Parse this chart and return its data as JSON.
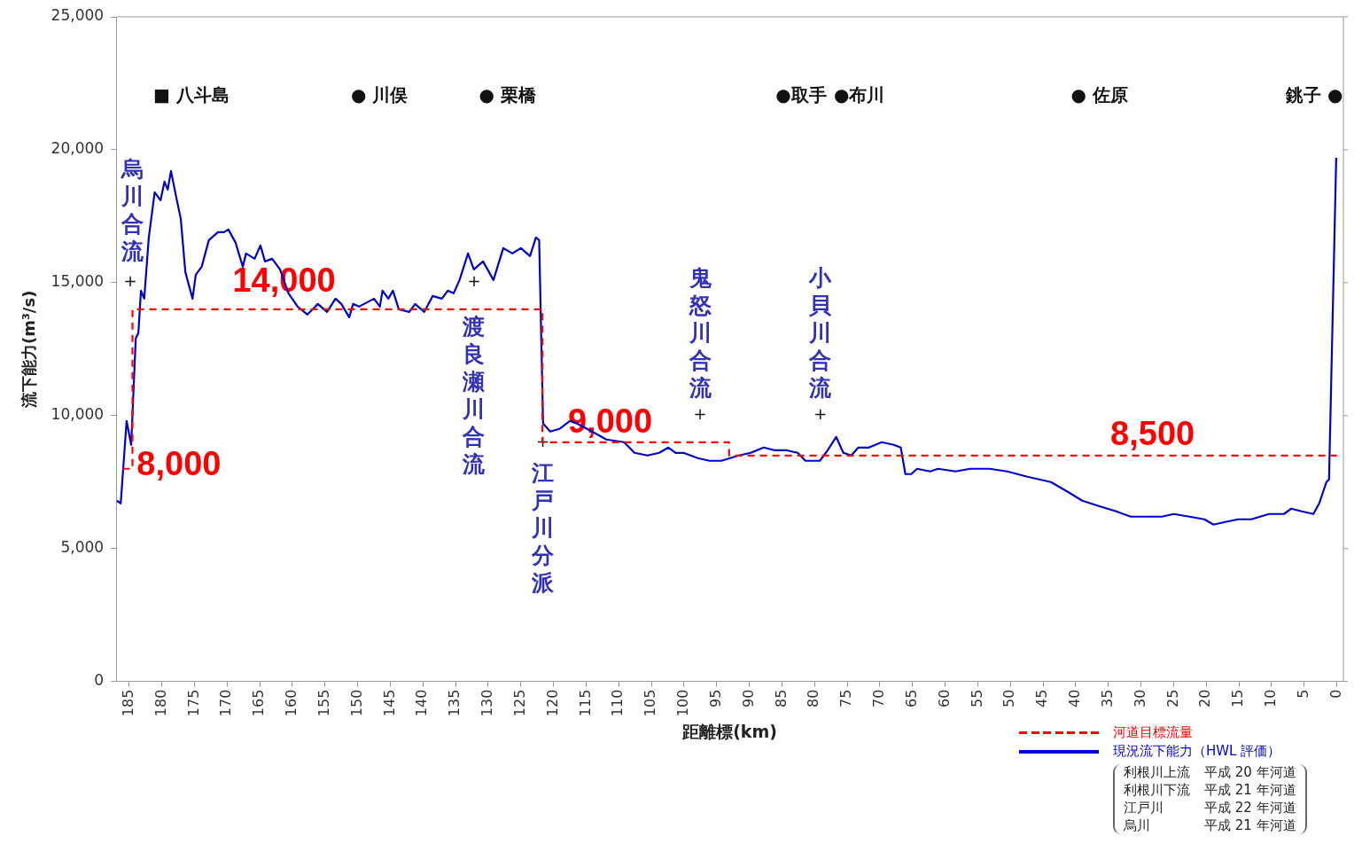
{
  "chart_data": {
    "type": "line",
    "xlabel": "距離標(km)",
    "ylabel": "流下能力(m³/s)",
    "xlim": [
      187,
      -1
    ],
    "ylim": [
      0,
      25000
    ],
    "xticks": [
      185,
      180,
      175,
      170,
      165,
      160,
      155,
      150,
      145,
      140,
      135,
      130,
      125,
      120,
      115,
      110,
      105,
      100,
      95,
      90,
      85,
      80,
      75,
      70,
      65,
      60,
      55,
      50,
      45,
      40,
      35,
      30,
      25,
      20,
      15,
      10,
      5,
      0
    ],
    "yticks": [
      0,
      {
        "value": 5000,
        "label": "5,000"
      },
      {
        "value": 10000,
        "label": "10,000"
      },
      {
        "value": 15000,
        "label": "15,000"
      },
      {
        "value": 20000,
        "label": "20,000"
      },
      {
        "value": 25000,
        "label": "25,000"
      }
    ],
    "grid": false,
    "legend": "bottom right",
    "marker": "none",
    "series": [
      {
        "name": "河道目標流量",
        "color": "#ff0000",
        "line_style": "dashed",
        "x": [
          186,
          184.5,
          184.5,
          121.7,
          121.7,
          93.1,
          93.1,
          0
        ],
        "values": [
          8000,
          8000,
          14000,
          14000,
          9000,
          9000,
          8500,
          8500
        ]
      },
      {
        "name": "現況流下能力（HWL 評価）",
        "color": "#0000cc",
        "line_style": "solid",
        "x": [
          186.9,
          186.3,
          185.4,
          184.7,
          184.0,
          183.6,
          183.2,
          182.7,
          182.0,
          181.1,
          180.2,
          179.6,
          179.1,
          178.6,
          177.7,
          177.1,
          176.4,
          175.3,
          174.8,
          173.9,
          172.8,
          171.4,
          170.5,
          169.8,
          168.7,
          167.6,
          167.1,
          165.8,
          164.9,
          164.2,
          163.1,
          161.9,
          160.6,
          159.2,
          157.7,
          156.1,
          154.7,
          153.4,
          152.5,
          151.3,
          150.7,
          149.8,
          147.5,
          146.6,
          146.2,
          145.3,
          144.6,
          143.7,
          142.1,
          141.2,
          139.8,
          138.5,
          137.1,
          136.2,
          135.3,
          134.4,
          133.1,
          132.2,
          130.8,
          129.2,
          127.7,
          126.3,
          125.0,
          123.6,
          122.7,
          122.2,
          121.6,
          120.5,
          119.1,
          117.5,
          116.4,
          114.1,
          111.9,
          109.2,
          107.6,
          105.6,
          103.8,
          102.4,
          101.3,
          100.1,
          97.9,
          96.1,
          94.3,
          91.6,
          89.8,
          87.8,
          86.2,
          84.4,
          82.6,
          81.4,
          79.2,
          78.0,
          76.7,
          75.6,
          74.4,
          73.3,
          71.7,
          69.7,
          67.9,
          66.8,
          66.1,
          65.2,
          64.3,
          62.3,
          61.1,
          58.4,
          56.2,
          53.2,
          50.5,
          47.4,
          43.8,
          41.0,
          39.0,
          36.5,
          33.8,
          31.6,
          26.8,
          25.0,
          22.6,
          20.3,
          18.9,
          17.1,
          15.1,
          13.1,
          10.4,
          8.1,
          7.0,
          5.4,
          3.6,
          2.7,
          1.6,
          1.2,
          0.1
        ],
        "values": [
          6800,
          6700,
          9800,
          8900,
          12900,
          13100,
          14700,
          14400,
          16700,
          18400,
          18100,
          18800,
          18500,
          19200,
          18100,
          17400,
          15400,
          14400,
          15300,
          15600,
          16600,
          16900,
          16900,
          17000,
          16500,
          15600,
          16100,
          15900,
          16400,
          15800,
          15900,
          15500,
          14600,
          14100,
          13800,
          14200,
          13900,
          14400,
          14200,
          13700,
          14200,
          14100,
          14400,
          14100,
          14700,
          14400,
          14700,
          14000,
          13900,
          14200,
          13900,
          14500,
          14400,
          14700,
          14600,
          15100,
          16100,
          15500,
          15800,
          15100,
          16300,
          16100,
          16300,
          16000,
          16700,
          16600,
          9700,
          9400,
          9500,
          9800,
          9700,
          9400,
          9100,
          9000,
          8600,
          8500,
          8600,
          8800,
          8600,
          8600,
          8400,
          8300,
          8300,
          8500,
          8600,
          8800,
          8700,
          8700,
          8600,
          8300,
          8300,
          8700,
          9200,
          8600,
          8500,
          8800,
          8800,
          9000,
          8900,
          8800,
          7800,
          7800,
          8000,
          7900,
          8000,
          7900,
          8000,
          8000,
          7900,
          7700,
          7500,
          7100,
          6800,
          6600,
          6400,
          6200,
          6200,
          6300,
          6200,
          6100,
          5900,
          6000,
          6100,
          6100,
          6300,
          6300,
          6500,
          6400,
          6300,
          6700,
          7500,
          7600,
          19700
        ]
      }
    ],
    "annotations": [
      "8,000",
      "14,000",
      "9,000",
      "8,500",
      "烏川合流",
      "+",
      "渡良瀬川合流",
      "+",
      "江戸川分派",
      "+",
      "鬼怒川合流",
      "+",
      "小貝川合流",
      "+",
      "■ 八斗島",
      "● 川俣",
      "● 栗橋",
      "●取手",
      "●布川",
      "● 佐原",
      "銚子 ●",
      "利根川上流　平成 20 年河道",
      "利根川下流　平成 21 年河道",
      "江戸川　平成 22 年河道",
      "烏川　平成 21 年河道"
    ]
  }
}
